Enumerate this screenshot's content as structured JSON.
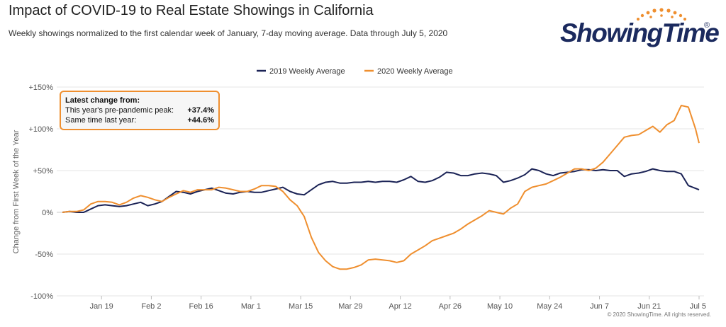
{
  "header": {
    "title": "Impact of COVID-19 to Real Estate Showings in California",
    "subtitle": "Weekly showings normalized to the first calendar week of January, 7-day moving average. Data through July 5, 2020"
  },
  "logo": {
    "text": "ShowingTime",
    "mark": "®"
  },
  "callout": {
    "heading": "Latest change from:",
    "rows": [
      {
        "label": "This year's pre-pandemic peak:",
        "value": "+37.4%"
      },
      {
        "label": "Same time last year:",
        "value": "+44.6%"
      }
    ]
  },
  "copyright": "© 2020 ShowingTime. All rights reserved.",
  "colors": {
    "series_2019": "#1b2356",
    "series_2020": "#ef8f2f",
    "grid": "#e6e6e6",
    "zero_line": "#c8c8c8"
  },
  "chart_data": {
    "type": "line",
    "ylabel": "Change from First Week of the Year",
    "ylim": [
      -100,
      150
    ],
    "y_ticks": [
      150,
      100,
      50,
      0,
      -50,
      -100
    ],
    "y_tick_labels": [
      "+150%",
      "+100%",
      "+50%",
      "0%",
      "-50%",
      "-100%"
    ],
    "x_tick_labels": [
      "Jan 19",
      "Feb 2",
      "Feb 16",
      "Mar 1",
      "Mar 15",
      "Mar 29",
      "Apr 12",
      "Apr 26",
      "May 10",
      "May 24",
      "Jun 7",
      "Jun 21",
      "Jul 5"
    ],
    "x_tick_days": [
      19,
      33,
      47,
      61,
      75,
      89,
      103,
      117,
      131,
      145,
      159,
      173,
      187
    ],
    "x_unit": "day of year",
    "xlim": [
      8,
      187
    ],
    "legend_position": "top-center",
    "grid": "horizontal",
    "series": [
      {
        "name": "2019 Weekly Average",
        "color": "#1b2356",
        "points": [
          [
            8,
            0
          ],
          [
            10,
            1
          ],
          [
            12,
            0
          ],
          [
            14,
            0
          ],
          [
            16,
            4
          ],
          [
            18,
            8
          ],
          [
            20,
            9
          ],
          [
            22,
            8
          ],
          [
            24,
            7
          ],
          [
            26,
            8
          ],
          [
            28,
            10
          ],
          [
            30,
            12
          ],
          [
            32,
            8
          ],
          [
            34,
            10
          ],
          [
            36,
            13
          ],
          [
            38,
            19
          ],
          [
            40,
            25
          ],
          [
            42,
            24
          ],
          [
            44,
            22
          ],
          [
            46,
            25
          ],
          [
            48,
            27
          ],
          [
            50,
            29
          ],
          [
            52,
            26
          ],
          [
            54,
            23
          ],
          [
            56,
            22
          ],
          [
            58,
            24
          ],
          [
            60,
            25
          ],
          [
            62,
            24
          ],
          [
            64,
            24
          ],
          [
            66,
            26
          ],
          [
            68,
            28
          ],
          [
            70,
            30
          ],
          [
            72,
            25
          ],
          [
            74,
            22
          ],
          [
            76,
            21
          ],
          [
            78,
            27
          ],
          [
            80,
            33
          ],
          [
            82,
            36
          ],
          [
            84,
            37
          ],
          [
            86,
            35
          ],
          [
            88,
            35
          ],
          [
            90,
            36
          ],
          [
            92,
            36
          ],
          [
            94,
            37
          ],
          [
            96,
            36
          ],
          [
            98,
            37
          ],
          [
            100,
            37
          ],
          [
            102,
            36
          ],
          [
            104,
            39
          ],
          [
            106,
            43
          ],
          [
            108,
            37
          ],
          [
            110,
            36
          ],
          [
            112,
            38
          ],
          [
            114,
            42
          ],
          [
            116,
            48
          ],
          [
            118,
            47
          ],
          [
            120,
            44
          ],
          [
            122,
            44
          ],
          [
            124,
            46
          ],
          [
            126,
            47
          ],
          [
            128,
            46
          ],
          [
            130,
            44
          ],
          [
            132,
            36
          ],
          [
            134,
            38
          ],
          [
            136,
            41
          ],
          [
            138,
            45
          ],
          [
            140,
            52
          ],
          [
            142,
            50
          ],
          [
            144,
            46
          ],
          [
            146,
            44
          ],
          [
            148,
            47
          ],
          [
            150,
            48
          ],
          [
            152,
            49
          ],
          [
            154,
            51
          ],
          [
            156,
            51
          ],
          [
            158,
            50
          ],
          [
            160,
            51
          ],
          [
            162,
            50
          ],
          [
            164,
            50
          ],
          [
            166,
            43
          ],
          [
            168,
            46
          ],
          [
            170,
            47
          ],
          [
            172,
            49
          ],
          [
            174,
            52
          ],
          [
            176,
            50
          ],
          [
            178,
            49
          ],
          [
            180,
            49
          ],
          [
            182,
            46
          ],
          [
            184,
            32
          ],
          [
            187,
            27
          ]
        ]
      },
      {
        "name": "2020 Weekly Average",
        "color": "#ef8f2f",
        "points": [
          [
            8,
            0
          ],
          [
            10,
            1
          ],
          [
            12,
            1
          ],
          [
            14,
            3
          ],
          [
            16,
            10
          ],
          [
            18,
            13
          ],
          [
            20,
            13
          ],
          [
            22,
            12
          ],
          [
            24,
            9
          ],
          [
            26,
            12
          ],
          [
            28,
            17
          ],
          [
            30,
            20
          ],
          [
            32,
            18
          ],
          [
            34,
            15
          ],
          [
            36,
            13
          ],
          [
            38,
            18
          ],
          [
            40,
            22
          ],
          [
            42,
            26
          ],
          [
            44,
            24
          ],
          [
            46,
            27
          ],
          [
            48,
            27
          ],
          [
            50,
            27
          ],
          [
            52,
            30
          ],
          [
            54,
            29
          ],
          [
            56,
            27
          ],
          [
            58,
            25
          ],
          [
            60,
            25
          ],
          [
            62,
            28
          ],
          [
            64,
            32
          ],
          [
            66,
            32
          ],
          [
            68,
            31
          ],
          [
            70,
            25
          ],
          [
            72,
            15
          ],
          [
            74,
            8
          ],
          [
            76,
            -5
          ],
          [
            78,
            -30
          ],
          [
            80,
            -48
          ],
          [
            82,
            -58
          ],
          [
            84,
            -65
          ],
          [
            86,
            -68
          ],
          [
            88,
            -68
          ],
          [
            90,
            -66
          ],
          [
            92,
            -63
          ],
          [
            94,
            -57
          ],
          [
            96,
            -56
          ],
          [
            98,
            -57
          ],
          [
            100,
            -58
          ],
          [
            102,
            -60
          ],
          [
            104,
            -58
          ],
          [
            106,
            -50
          ],
          [
            108,
            -45
          ],
          [
            110,
            -40
          ],
          [
            112,
            -34
          ],
          [
            114,
            -31
          ],
          [
            116,
            -28
          ],
          [
            118,
            -25
          ],
          [
            120,
            -20
          ],
          [
            122,
            -14
          ],
          [
            124,
            -9
          ],
          [
            126,
            -4
          ],
          [
            128,
            2
          ],
          [
            130,
            0
          ],
          [
            132,
            -2
          ],
          [
            134,
            5
          ],
          [
            136,
            10
          ],
          [
            138,
            25
          ],
          [
            140,
            30
          ],
          [
            142,
            32
          ],
          [
            144,
            34
          ],
          [
            146,
            38
          ],
          [
            148,
            42
          ],
          [
            150,
            47
          ],
          [
            152,
            52
          ],
          [
            154,
            52
          ],
          [
            156,
            50
          ],
          [
            158,
            53
          ],
          [
            160,
            60
          ],
          [
            162,
            70
          ],
          [
            164,
            80
          ],
          [
            166,
            90
          ],
          [
            168,
            92
          ],
          [
            170,
            93
          ],
          [
            172,
            98
          ],
          [
            174,
            103
          ],
          [
            176,
            96
          ],
          [
            178,
            105
          ],
          [
            180,
            110
          ],
          [
            182,
            128
          ],
          [
            184,
            126
          ],
          [
            186,
            100
          ],
          [
            187,
            83
          ]
        ]
      }
    ]
  }
}
